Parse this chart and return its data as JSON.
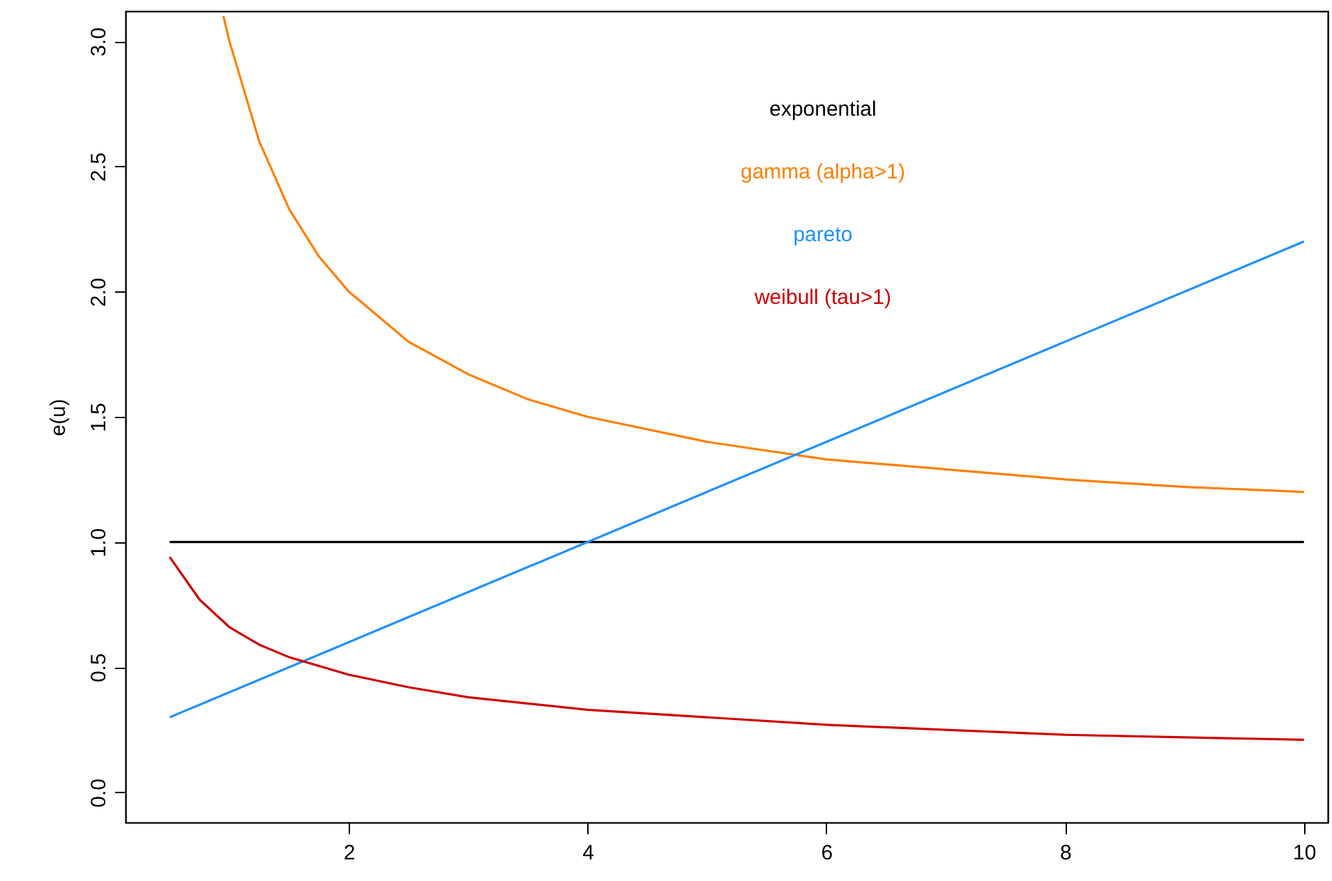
{
  "chart_data": {
    "type": "line",
    "ylabel": "e(u)",
    "xlim": [
      0.13,
      10.2
    ],
    "ylim": [
      -0.12,
      3.12
    ],
    "xticks": [
      2,
      4,
      6,
      8,
      10
    ],
    "yticks": [
      {
        "value": 0,
        "label": "0.0"
      },
      {
        "value": 0.5,
        "label": "0.5"
      },
      {
        "value": 1,
        "label": "1.0"
      },
      {
        "value": 1.5,
        "label": "1.5"
      },
      {
        "value": 2,
        "label": "2.0"
      },
      {
        "value": 2.5,
        "label": "2.5"
      },
      {
        "value": 3,
        "label": "3.0"
      }
    ],
    "grid": false,
    "legend": "top",
    "line_style": "solid",
    "marker": "none",
    "series": [
      {
        "name": "exponential",
        "color": "#000000",
        "x": [
          0.5,
          10
        ],
        "values": [
          1,
          1
        ]
      },
      {
        "name": "gamma (alpha>1)",
        "color": "#ff7f00",
        "x": [
          0.95,
          1,
          1.25,
          1.5,
          1.75,
          2,
          2.5,
          3,
          3.5,
          4,
          5,
          6,
          7,
          8,
          9,
          10
        ],
        "values": [
          3.1,
          3.0,
          2.6,
          2.33,
          2.14,
          2.0,
          1.8,
          1.67,
          1.57,
          1.5,
          1.4,
          1.33,
          1.29,
          1.25,
          1.22,
          1.2
        ]
      },
      {
        "name": "pareto",
        "color": "#1e90ff",
        "x": [
          0.5,
          10
        ],
        "values": [
          0.3,
          2.2
        ]
      },
      {
        "name": "weibull (tau>1)",
        "color": "#cd0000",
        "x": [
          0.5,
          0.75,
          1,
          1.25,
          1.5,
          2,
          2.5,
          3,
          4,
          5,
          6,
          7,
          8,
          9,
          10
        ],
        "values": [
          0.94,
          0.77,
          0.66,
          0.59,
          0.54,
          0.47,
          0.42,
          0.38,
          0.33,
          0.3,
          0.27,
          0.25,
          0.23,
          0.22,
          0.21
        ]
      }
    ]
  }
}
